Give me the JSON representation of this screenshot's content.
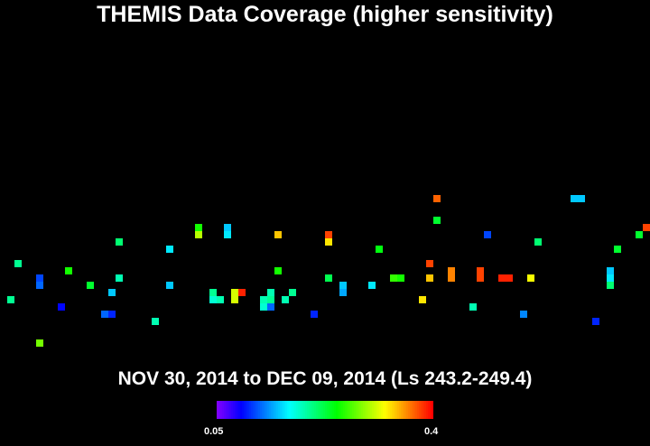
{
  "chart_data": {
    "type": "heatmap",
    "title": "THEMIS Data Coverage (higher sensitivity)",
    "subtitle": "NOV 30, 2014 to DEC 09, 2014 (Ls 243.2-249.4)",
    "colorbar": {
      "min_label": "0.05",
      "max_label": "0.4",
      "min": 0.05,
      "max": 0.4
    },
    "points": [
      {
        "c": 60,
        "r": 27,
        "v": 0.37
      },
      {
        "c": 79,
        "r": 27,
        "v": 0.15
      },
      {
        "c": 80,
        "r": 27,
        "v": 0.15
      },
      {
        "c": 27,
        "r": 31,
        "v": 0.25
      },
      {
        "c": 31,
        "r": 31,
        "v": 0.15
      },
      {
        "c": 60,
        "r": 30,
        "v": 0.23
      },
      {
        "c": 89,
        "r": 31,
        "v": 0.38
      },
      {
        "c": 90,
        "r": 31,
        "v": 0.27
      },
      {
        "c": 27,
        "r": 32,
        "v": 0.3
      },
      {
        "c": 31,
        "r": 32,
        "v": 0.16
      },
      {
        "c": 38,
        "r": 32,
        "v": 0.34
      },
      {
        "c": 45,
        "r": 32,
        "v": 0.38
      },
      {
        "c": 45,
        "r": 33,
        "v": 0.33
      },
      {
        "c": 67,
        "r": 32,
        "v": 0.11
      },
      {
        "c": 88,
        "r": 32,
        "v": 0.23
      },
      {
        "c": 16,
        "r": 33,
        "v": 0.21
      },
      {
        "c": 74,
        "r": 33,
        "v": 0.21
      },
      {
        "c": 23,
        "r": 34,
        "v": 0.16
      },
      {
        "c": 52,
        "r": 34,
        "v": 0.24
      },
      {
        "c": 85,
        "r": 34,
        "v": 0.23
      },
      {
        "c": 2,
        "r": 36,
        "v": 0.2
      },
      {
        "c": 59,
        "r": 36,
        "v": 0.38
      },
      {
        "c": 9,
        "r": 37,
        "v": 0.25
      },
      {
        "c": 38,
        "r": 37,
        "v": 0.25
      },
      {
        "c": 84,
        "r": 37,
        "v": 0.15
      },
      {
        "c": 5,
        "r": 38,
        "v": 0.11
      },
      {
        "c": 16,
        "r": 38,
        "v": 0.19
      },
      {
        "c": 45,
        "r": 38,
        "v": 0.22
      },
      {
        "c": 54,
        "r": 38,
        "v": 0.26
      },
      {
        "c": 55,
        "r": 38,
        "v": 0.25
      },
      {
        "c": 59,
        "r": 38,
        "v": 0.34
      },
      {
        "c": 62,
        "r": 37,
        "v": 0.36
      },
      {
        "c": 62,
        "r": 38,
        "v": 0.36
      },
      {
        "c": 66,
        "r": 37,
        "v": 0.38
      },
      {
        "c": 66,
        "r": 38,
        "v": 0.38
      },
      {
        "c": 69,
        "r": 38,
        "v": 0.39
      },
      {
        "c": 70,
        "r": 38,
        "v": 0.39
      },
      {
        "c": 73,
        "r": 38,
        "v": 0.32
      },
      {
        "c": 84,
        "r": 38,
        "v": 0.16
      },
      {
        "c": 5,
        "r": 39,
        "v": 0.12
      },
      {
        "c": 12,
        "r": 39,
        "v": 0.23
      },
      {
        "c": 23,
        "r": 39,
        "v": 0.15
      },
      {
        "c": 47,
        "r": 39,
        "v": 0.15
      },
      {
        "c": 51,
        "r": 39,
        "v": 0.16
      },
      {
        "c": 84,
        "r": 39,
        "v": 0.21
      },
      {
        "c": 15,
        "r": 40,
        "v": 0.15
      },
      {
        "c": 29,
        "r": 40,
        "v": 0.2
      },
      {
        "c": 32,
        "r": 40,
        "v": 0.31
      },
      {
        "c": 33,
        "r": 40,
        "v": 0.39
      },
      {
        "c": 37,
        "r": 40,
        "v": 0.19
      },
      {
        "c": 40,
        "r": 40,
        "v": 0.2
      },
      {
        "c": 47,
        "r": 40,
        "v": 0.14
      },
      {
        "c": 1,
        "r": 41,
        "v": 0.2
      },
      {
        "c": 29,
        "r": 41,
        "v": 0.18
      },
      {
        "c": 30,
        "r": 41,
        "v": 0.19
      },
      {
        "c": 32,
        "r": 41,
        "v": 0.31
      },
      {
        "c": 36,
        "r": 41,
        "v": 0.19
      },
      {
        "c": 37,
        "r": 41,
        "v": 0.2
      },
      {
        "c": 39,
        "r": 41,
        "v": 0.19
      },
      {
        "c": 58,
        "r": 41,
        "v": 0.33
      },
      {
        "c": 8,
        "r": 42,
        "v": 0.09
      },
      {
        "c": 36,
        "r": 42,
        "v": 0.18
      },
      {
        "c": 37,
        "r": 42,
        "v": 0.12
      },
      {
        "c": 65,
        "r": 42,
        "v": 0.19
      },
      {
        "c": 14,
        "r": 43,
        "v": 0.12
      },
      {
        "c": 15,
        "r": 43,
        "v": 0.1
      },
      {
        "c": 43,
        "r": 43,
        "v": 0.1
      },
      {
        "c": 72,
        "r": 43,
        "v": 0.13
      },
      {
        "c": 21,
        "r": 44,
        "v": 0.19
      },
      {
        "c": 82,
        "r": 44,
        "v": 0.1
      },
      {
        "c": 5,
        "r": 47,
        "v": 0.28
      }
    ]
  }
}
